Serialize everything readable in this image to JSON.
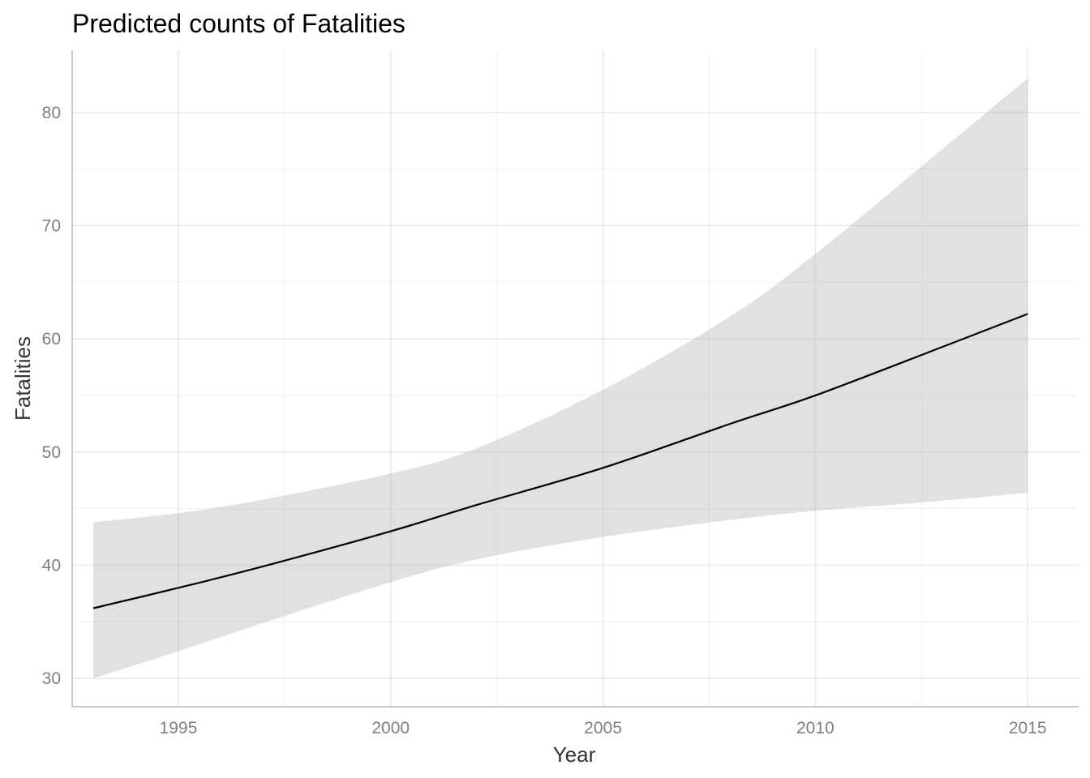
{
  "chart_data": {
    "type": "line",
    "title": "Predicted counts of Fatalities",
    "xlabel": "Year",
    "ylabel": "Fatalities",
    "xlim": [
      1992.5,
      2016.2
    ],
    "ylim": [
      27.5,
      85.5
    ],
    "x_ticks": [
      1995,
      2000,
      2005,
      2010,
      2015
    ],
    "x_minor_ticks": [
      1992.5,
      1997.5,
      2002.5,
      2007.5,
      2012.5
    ],
    "y_ticks": [
      30,
      40,
      50,
      60,
      70,
      80
    ],
    "y_minor_ticks": [
      35,
      45,
      55,
      65,
      75
    ],
    "grid": true,
    "legend": "none",
    "series": [
      {
        "x": [
          1993,
          1995,
          1997,
          2000,
          2002,
          2005,
          2008,
          2010,
          2013,
          2015
        ],
        "y": [
          36.2,
          38.0,
          39.9,
          43.0,
          45.3,
          48.6,
          52.5,
          55.0,
          59.3,
          62.2
        ],
        "lower": [
          30.0,
          32.4,
          34.9,
          38.5,
          40.5,
          42.5,
          44.0,
          44.8,
          45.7,
          46.4
        ],
        "upper": [
          43.8,
          44.6,
          45.8,
          48.1,
          50.3,
          55.5,
          62.0,
          67.5,
          76.8,
          83.0
        ]
      }
    ],
    "colors": {
      "line": "#000000",
      "band": "#b3b3b3"
    }
  }
}
